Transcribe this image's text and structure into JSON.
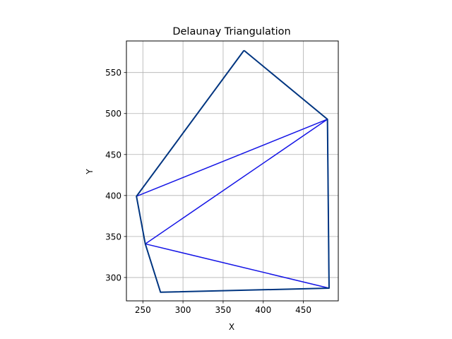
{
  "chart_data": {
    "type": "line",
    "title": "Delaunay Triangulation",
    "xlabel": "X",
    "ylabel": "Y",
    "xlim": [
      229.5,
      493.5
    ],
    "ylim": [
      271.5,
      588.5
    ],
    "xticks": [
      250,
      300,
      350,
      400,
      450
    ],
    "yticks": [
      300,
      350,
      400,
      450,
      500,
      550
    ],
    "grid": true,
    "aspect": "equal",
    "points": [
      {
        "x": 376,
        "y": 577
      },
      {
        "x": 480,
        "y": 493
      },
      {
        "x": 482,
        "y": 287
      },
      {
        "x": 272,
        "y": 282
      },
      {
        "x": 253,
        "y": 341
      },
      {
        "x": 242,
        "y": 399
      }
    ],
    "hull_color": "#003580",
    "edge_color": "#1515e6",
    "hull": [
      0,
      1,
      2,
      3,
      4,
      5,
      0
    ],
    "edges": [
      [
        5,
        1
      ],
      [
        4,
        1
      ],
      [
        4,
        2
      ],
      [
        1,
        2
      ]
    ]
  }
}
